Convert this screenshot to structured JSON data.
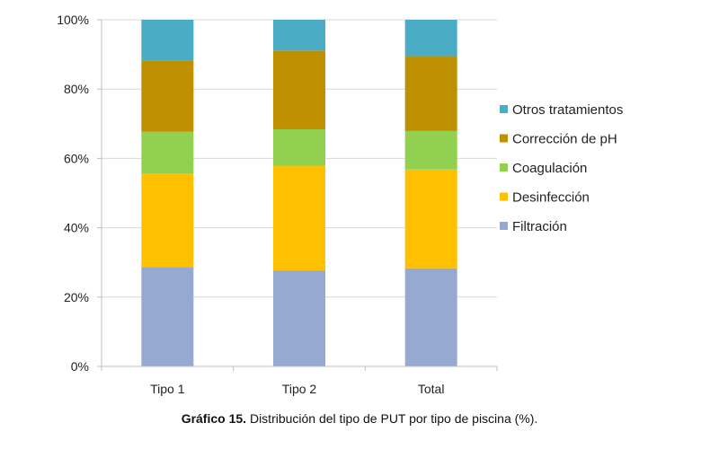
{
  "chart_data": {
    "type": "bar",
    "stacked": true,
    "categories": [
      "Tipo 1",
      "Tipo 2",
      "Total"
    ],
    "series": [
      {
        "name": "Filtración",
        "color": "#96A9D1",
        "values": [
          28.7,
          27.7,
          28.3
        ]
      },
      {
        "name": "Desinfección",
        "color": "#FFC000",
        "values": [
          26.9,
          30.2,
          28.5
        ]
      },
      {
        "name": "Coagulación",
        "color": "#92D050",
        "values": [
          12.1,
          10.5,
          11.1
        ]
      },
      {
        "name": "Corrección de pH",
        "color": "#BF9000",
        "values": [
          20.6,
          22.7,
          21.6
        ]
      },
      {
        "name": "Otros tratamientos",
        "color": "#4BACC6",
        "values": [
          11.7,
          8.9,
          10.5
        ]
      }
    ],
    "ylim": [
      0,
      100
    ],
    "yticks": [
      "0%",
      "20%",
      "40%",
      "60%",
      "80%",
      "100%"
    ],
    "ytick_values": [
      0,
      20,
      40,
      60,
      80,
      100
    ],
    "grid": true,
    "legend_position": "right"
  },
  "caption": {
    "label": "Gráfico 15.",
    "text": " Distribución del tipo de PUT por tipo de piscina (%)."
  }
}
